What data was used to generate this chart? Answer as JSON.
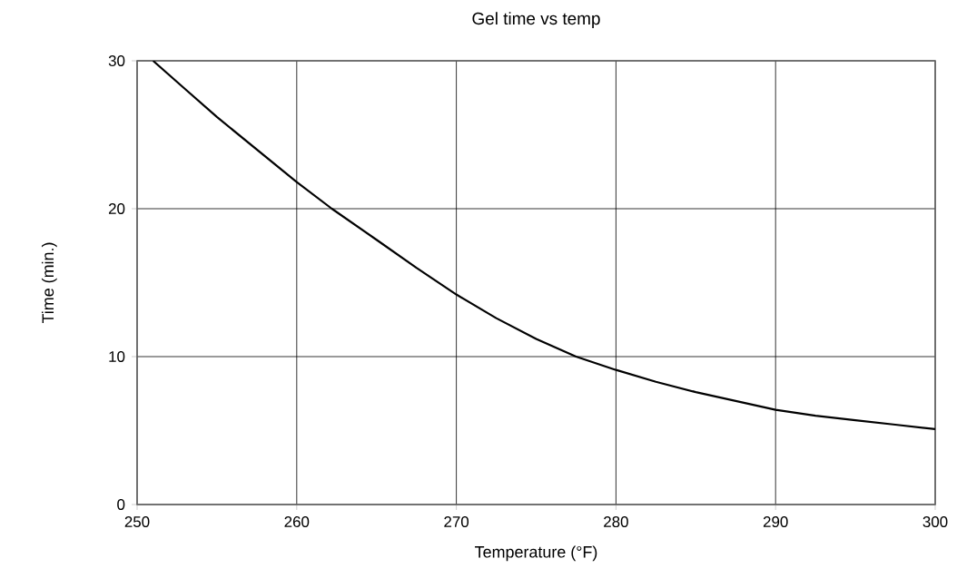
{
  "chart_data": {
    "type": "line",
    "title": "Gel time vs temp",
    "xlabel": "Temperature (°F)",
    "ylabel": "Time (min.)",
    "series": [
      {
        "color": "#000000",
        "x": [
          251,
          253,
          255,
          257.5,
          260,
          262.2,
          265,
          267.5,
          270,
          272.5,
          275,
          277.5,
          280,
          282.5,
          285,
          287.5,
          290,
          292.5,
          295,
          297.5,
          300
        ],
        "values": [
          30,
          28.1,
          26.2,
          24,
          21.8,
          20,
          17.9,
          16,
          14.2,
          12.6,
          11.2,
          10,
          9.1,
          8.3,
          7.6,
          7,
          6.4,
          6,
          5.7,
          5.4,
          5.1
        ]
      }
    ],
    "xlim": [
      250,
      300
    ],
    "ylim": [
      0,
      30
    ],
    "xticks": [
      250,
      260,
      270,
      280,
      290,
      300
    ],
    "yticks": [
      0,
      10,
      20,
      30
    ],
    "grid": true,
    "marker": "none",
    "line_style": "solid"
  }
}
